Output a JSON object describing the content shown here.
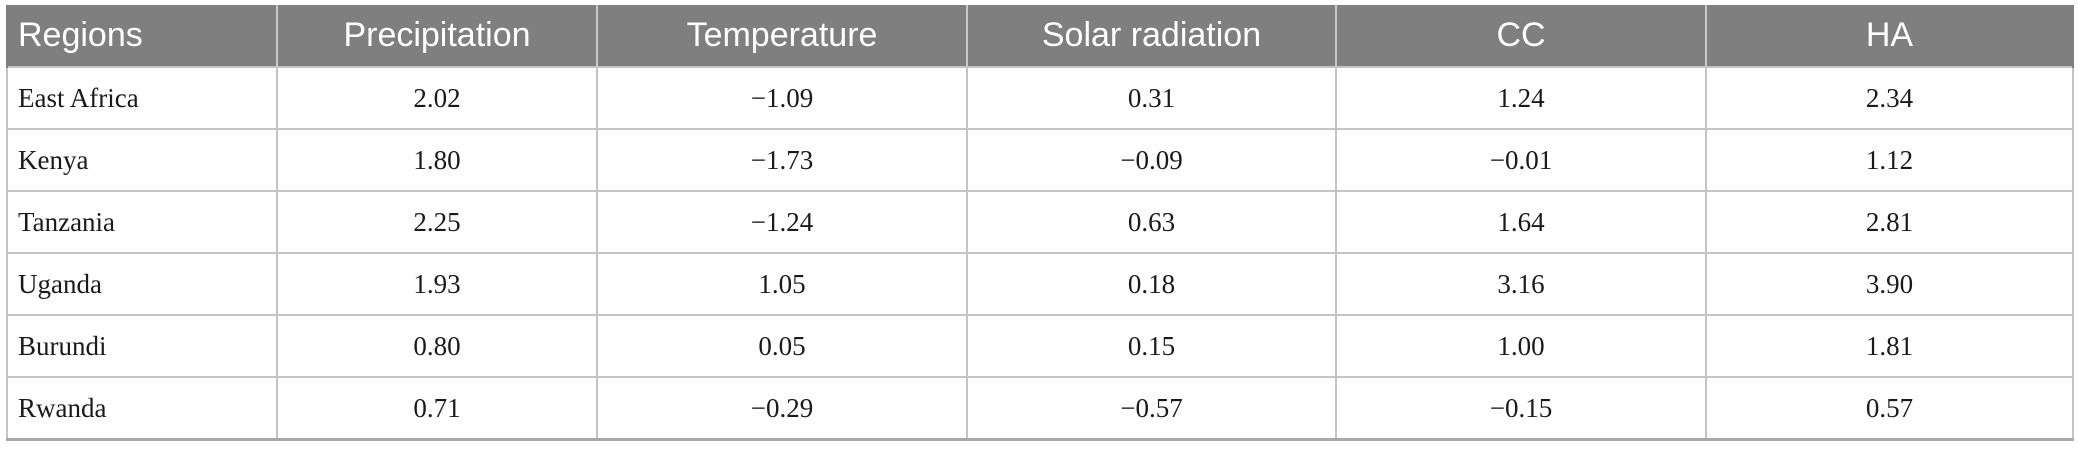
{
  "table": {
    "headers": [
      "Regions",
      "Precipitation",
      "Temperature",
      "Solar radiation",
      "CC",
      "HA"
    ],
    "rows": [
      [
        "East Africa",
        "2.02",
        "−1.09",
        "0.31",
        "1.24",
        "2.34"
      ],
      [
        "Kenya",
        "1.80",
        "−1.73",
        "−0.09",
        "−0.01",
        "1.12"
      ],
      [
        "Tanzania",
        "2.25",
        "−1.24",
        "0.63",
        "1.64",
        "2.81"
      ],
      [
        "Uganda",
        "1.93",
        "1.05",
        "0.18",
        "3.16",
        "3.90"
      ],
      [
        "Burundi",
        "0.80",
        "0.05",
        "0.15",
        "1.00",
        "1.81"
      ],
      [
        "Rwanda",
        "0.71",
        "−0.29",
        "−0.57",
        "−0.15",
        "0.57"
      ]
    ]
  }
}
